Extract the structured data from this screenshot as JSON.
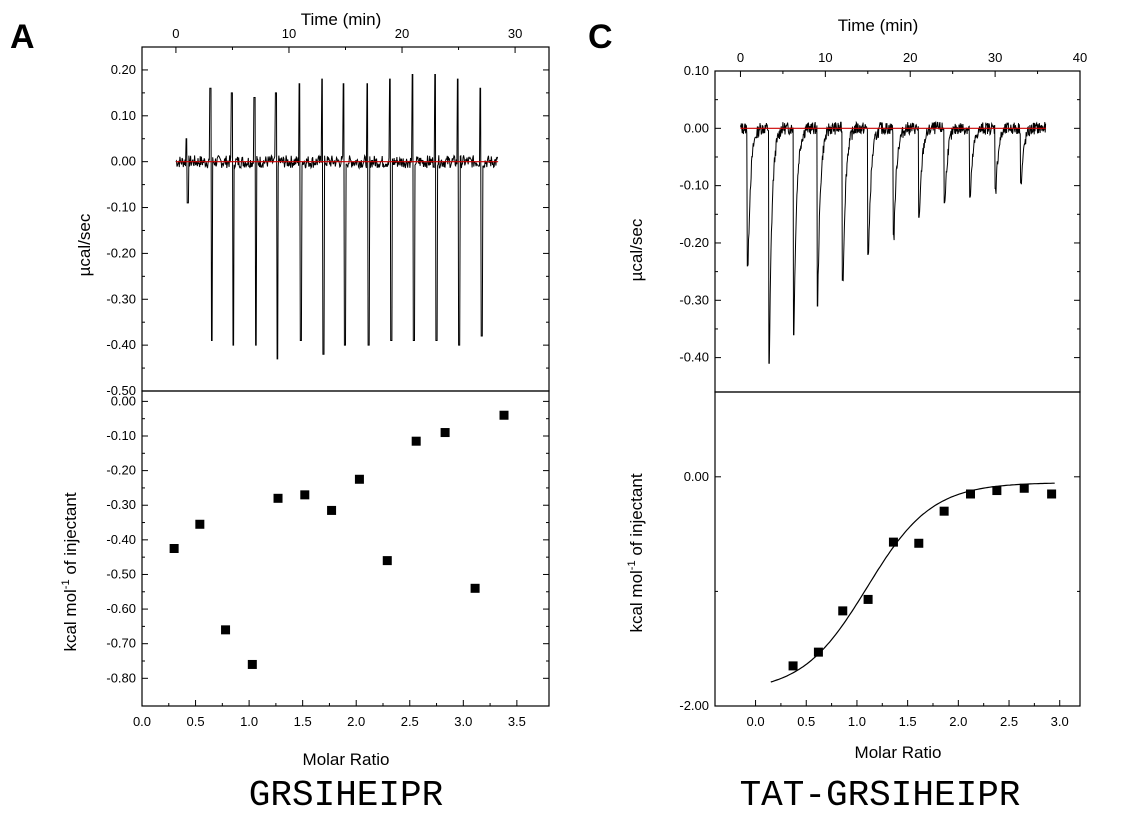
{
  "panels": [
    {
      "letter": "A",
      "caption": "GRSIHEIPR",
      "top_xlabel": "Time (min)",
      "top_ylabel": "µcal/sec",
      "bottom_xlabel": "Molar Ratio",
      "bottom_ylabel_main": "kcal mol",
      "bottom_ylabel_sup": "-1",
      "bottom_ylabel_tail": " of injectant"
    },
    {
      "letter": "C",
      "caption": "TAT-GRSIHEIPR",
      "top_xlabel": "Time (min)",
      "top_ylabel": "µcal/sec",
      "bottom_xlabel": "Molar Ratio",
      "bottom_ylabel_main": "kcal mol",
      "bottom_ylabel_sup": "-1",
      "bottom_ylabel_tail": " of injectant"
    }
  ],
  "chart_data": [
    {
      "panel": "A",
      "subplot": "top",
      "type": "line",
      "xlabel": "Time (min)",
      "ylabel": "µcal/sec",
      "xlim": [
        -3,
        33
      ],
      "ylim": [
        -0.5,
        0.25
      ],
      "x_ticks": [
        0,
        10,
        20,
        30
      ],
      "y_ticks": [
        0.2,
        0.1,
        0.0,
        -0.1,
        -0.2,
        -0.3,
        -0.4,
        -0.5
      ],
      "y_tick_labels": [
        "0.20",
        "0.10",
        "0.00",
        "-0.10",
        "-0.20",
        "-0.30",
        "-0.40",
        "-0.50"
      ],
      "baseline": 0.0,
      "trace_start": 0.0,
      "trace_end": 28.5,
      "peaks": [
        {
          "t": 1.0,
          "up": 0.05,
          "down": -0.09
        },
        {
          "t": 3.1,
          "up": 0.16,
          "down": -0.39
        },
        {
          "t": 5.0,
          "up": 0.15,
          "down": -0.4
        },
        {
          "t": 7.0,
          "up": 0.14,
          "down": -0.4
        },
        {
          "t": 8.9,
          "up": 0.15,
          "down": -0.43
        },
        {
          "t": 11.0,
          "up": 0.17,
          "down": -0.39
        },
        {
          "t": 13.0,
          "up": 0.18,
          "down": -0.42
        },
        {
          "t": 14.9,
          "up": 0.17,
          "down": -0.4
        },
        {
          "t": 17.0,
          "up": 0.17,
          "down": -0.4
        },
        {
          "t": 19.0,
          "up": 0.18,
          "down": -0.39
        },
        {
          "t": 21.0,
          "up": 0.19,
          "down": -0.39
        },
        {
          "t": 23.0,
          "up": 0.19,
          "down": -0.39
        },
        {
          "t": 25.0,
          "up": 0.18,
          "down": -0.4
        },
        {
          "t": 27.0,
          "up": 0.16,
          "down": -0.38
        }
      ]
    },
    {
      "panel": "A",
      "subplot": "bottom",
      "type": "scatter",
      "xlabel": "Molar Ratio",
      "ylabel": "kcal mol-1 of injectant",
      "xlim": [
        0.0,
        3.8
      ],
      "ylim": [
        -0.88,
        0.03
      ],
      "x_ticks": [
        0.0,
        0.5,
        1.0,
        1.5,
        2.0,
        2.5,
        3.0,
        3.5
      ],
      "x_tick_labels": [
        "0.0",
        "0.5",
        "1.0",
        "1.5",
        "2.0",
        "2.5",
        "3.0",
        "3.5"
      ],
      "y_ticks": [
        0.0,
        -0.1,
        -0.2,
        -0.3,
        -0.4,
        -0.5,
        -0.6,
        -0.7,
        -0.8
      ],
      "y_tick_labels": [
        "0.00",
        "-0.10",
        "-0.20",
        "-0.30",
        "-0.40",
        "-0.50",
        "-0.60",
        "-0.70",
        "-0.80"
      ],
      "x": [
        0.3,
        0.54,
        0.78,
        1.03,
        1.27,
        1.52,
        1.77,
        2.03,
        2.29,
        2.56,
        2.83,
        3.11,
        3.38
      ],
      "y": [
        -0.425,
        -0.355,
        -0.66,
        -0.76,
        -0.28,
        -0.27,
        -0.315,
        -0.225,
        -0.46,
        -0.115,
        -0.09,
        -0.54,
        -0.04
      ]
    },
    {
      "panel": "C",
      "subplot": "top",
      "type": "line",
      "xlabel": "Time (min)",
      "ylabel": "µcal/sec",
      "xlim": [
        -3,
        40
      ],
      "ylim": [
        -0.46,
        0.1
      ],
      "x_ticks": [
        0,
        10,
        20,
        30,
        40
      ],
      "y_ticks": [
        0.1,
        0.0,
        -0.1,
        -0.2,
        -0.3,
        -0.4
      ],
      "y_tick_labels": [
        "0.10",
        "0.00",
        "-0.10",
        "-0.20",
        "-0.30",
        "-0.40"
      ],
      "baseline": 0.0,
      "trace_start": 0.0,
      "trace_end": 36.0,
      "peaks": [
        {
          "t": 0.8,
          "down": -0.24
        },
        {
          "t": 3.3,
          "down": -0.41
        },
        {
          "t": 6.2,
          "down": -0.36
        },
        {
          "t": 9.0,
          "down": -0.31
        },
        {
          "t": 12.0,
          "down": -0.265
        },
        {
          "t": 15.0,
          "down": -0.22
        },
        {
          "t": 18.0,
          "down": -0.185
        },
        {
          "t": 21.0,
          "down": -0.155
        },
        {
          "t": 24.0,
          "down": -0.13
        },
        {
          "t": 27.0,
          "down": -0.12
        },
        {
          "t": 30.0,
          "down": -0.105
        },
        {
          "t": 33.0,
          "down": -0.095
        }
      ]
    },
    {
      "panel": "C",
      "subplot": "bottom",
      "type": "scatter",
      "xlabel": "Molar Ratio",
      "ylabel": "kcal mol-1 of injectant",
      "xlim": [
        -0.4,
        3.2
      ],
      "ylim": [
        -2.0,
        0.74
      ],
      "x_ticks": [
        0.0,
        0.5,
        1.0,
        1.5,
        2.0,
        2.5,
        3.0
      ],
      "x_tick_labels": [
        "0.0",
        "0.5",
        "1.0",
        "1.5",
        "2.0",
        "2.5",
        "3.0"
      ],
      "y_ticks": [
        0.0,
        -2.0
      ],
      "y_tick_labels": [
        "0.00",
        "-2.00"
      ],
      "x": [
        0.37,
        0.62,
        0.86,
        1.11,
        1.36,
        1.61,
        1.86,
        2.12,
        2.38,
        2.65,
        2.92
      ],
      "y": [
        -1.65,
        -1.53,
        -1.17,
        -1.07,
        -0.57,
        -0.58,
        -0.3,
        -0.15,
        -0.12,
        -0.1,
        -0.15
      ],
      "fit": {
        "top": -0.05,
        "bottom": -1.88,
        "mid": 1.1,
        "width": 0.32,
        "x_start": 0.15,
        "x_end": 2.95
      }
    }
  ]
}
